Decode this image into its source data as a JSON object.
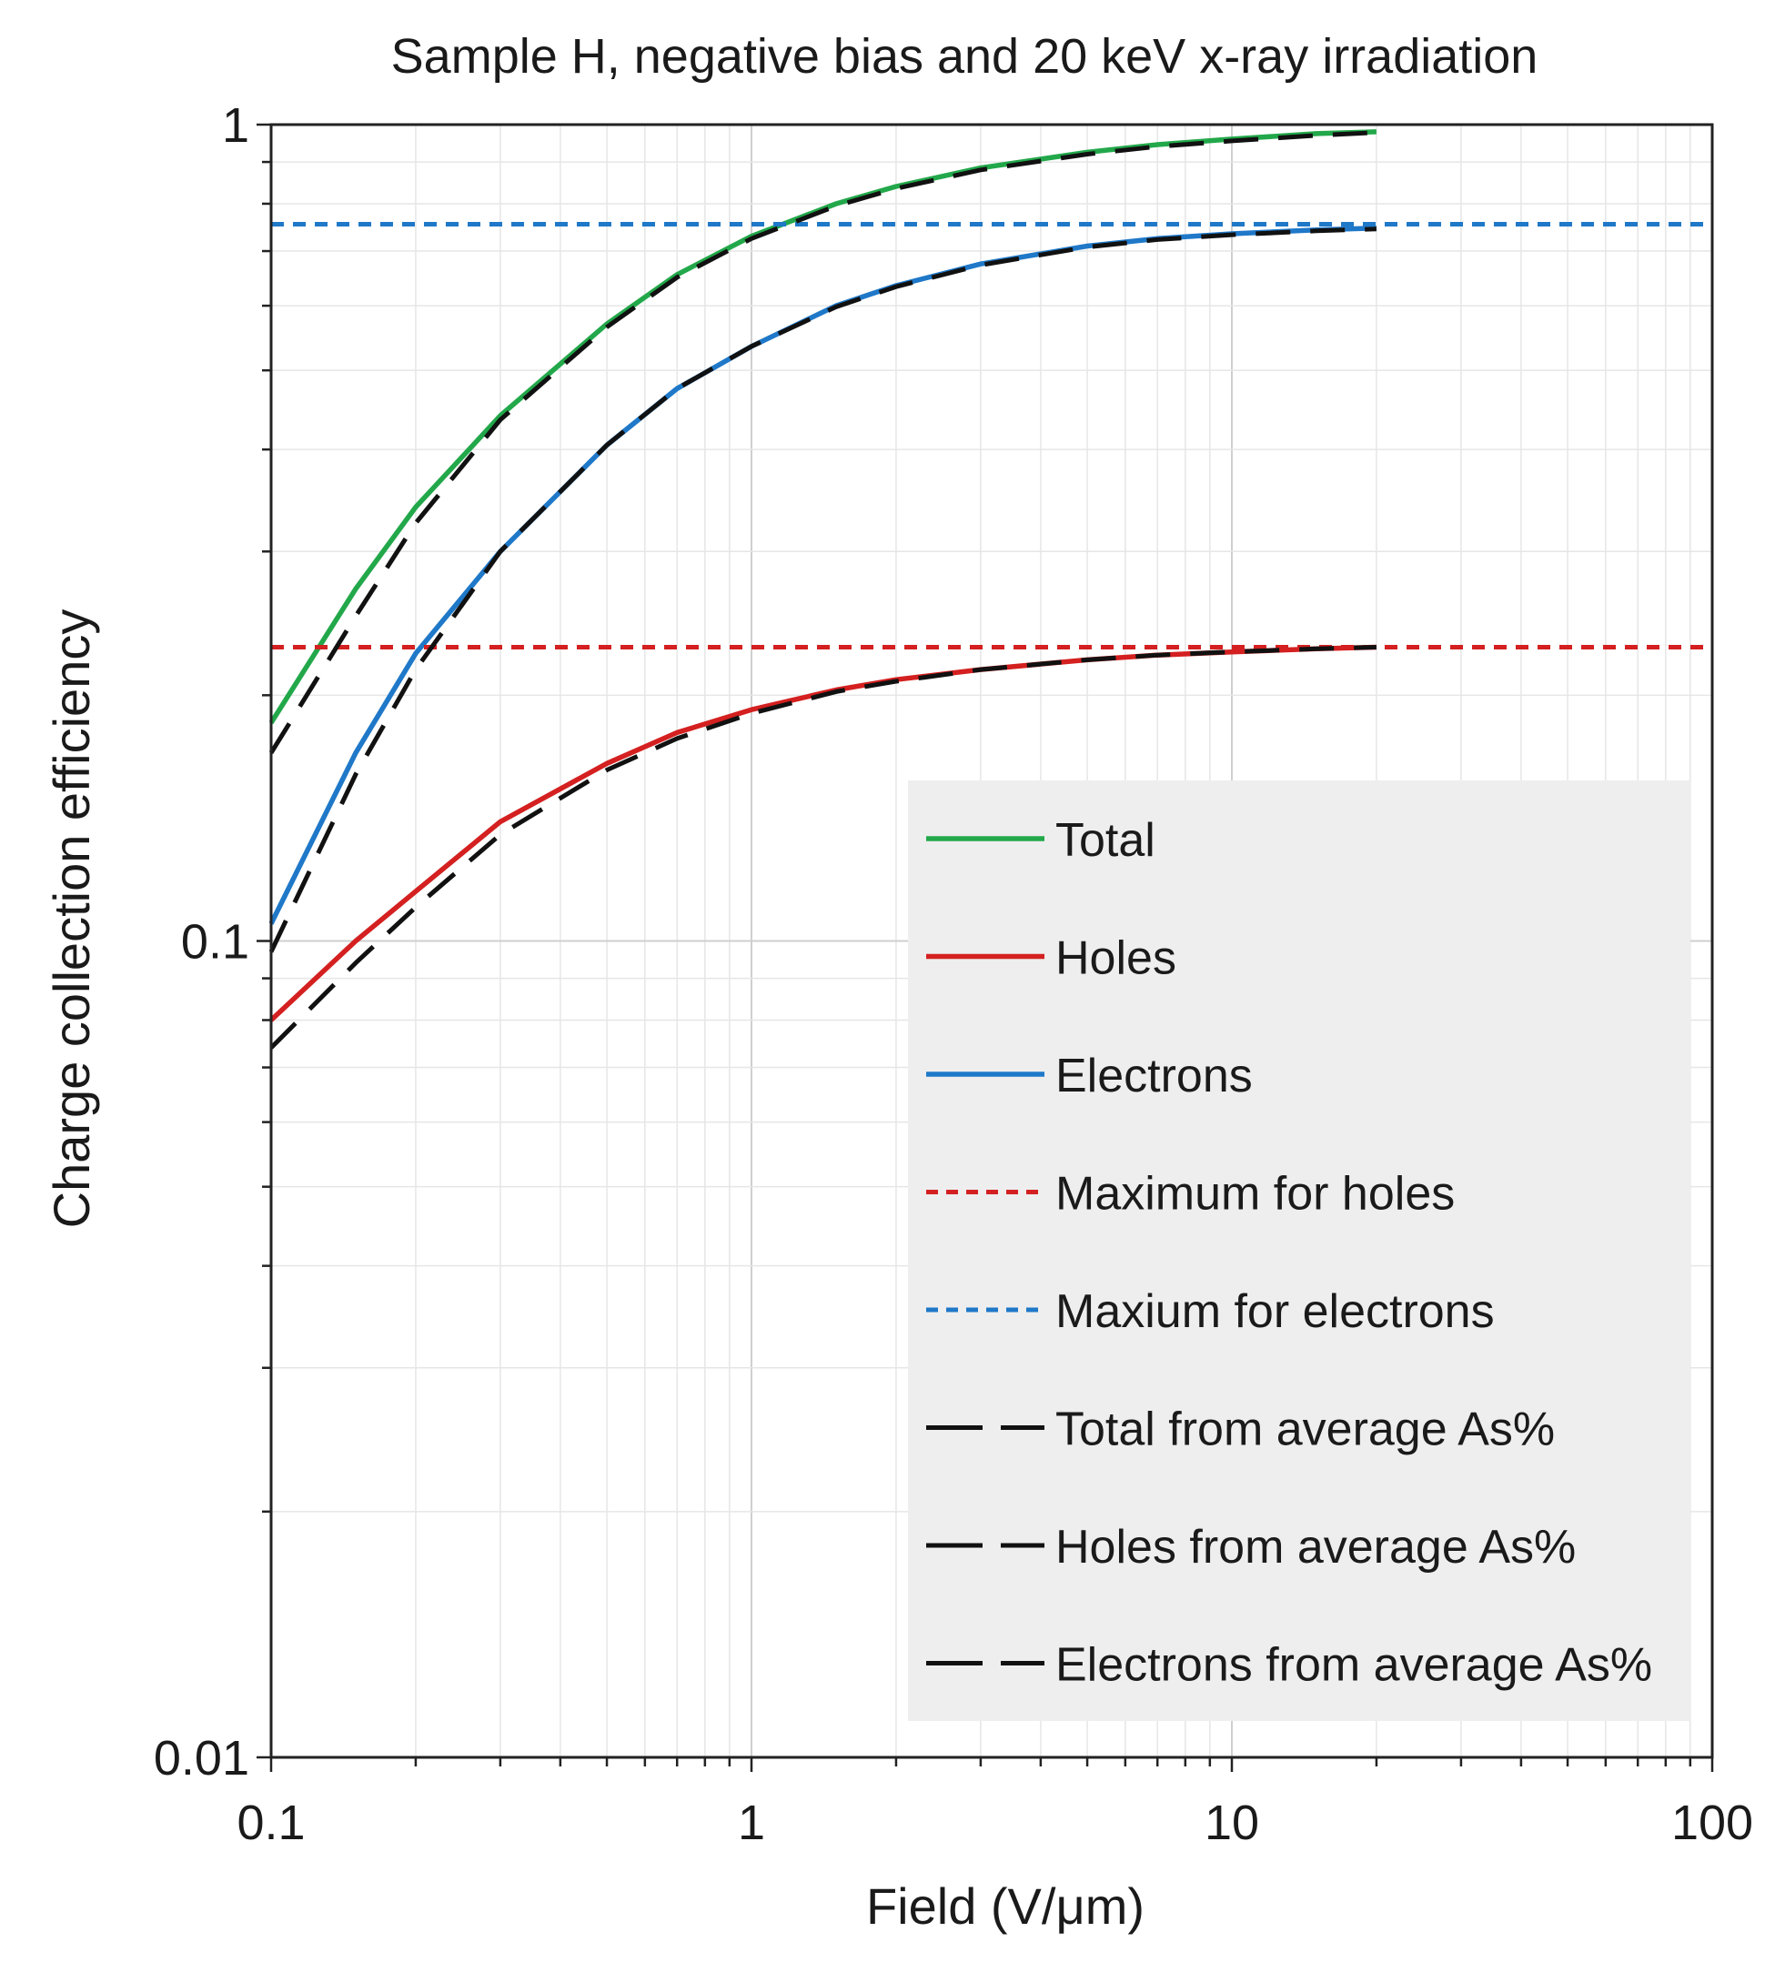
{
  "chart_data": {
    "type": "line",
    "title": "Sample H, negative bias and 20 keV x-ray irradiation",
    "xlabel": "Field (V/μm)",
    "ylabel": "Charge collection efficiency",
    "xscale": "log",
    "yscale": "log",
    "xlim": [
      0.1,
      100
    ],
    "ylim": [
      0.01,
      1
    ],
    "xticks": [
      0.1,
      1,
      10,
      100
    ],
    "xtick_labels": [
      "0.1",
      "1",
      "10",
      "100"
    ],
    "yticks": [
      0.01,
      0.1,
      1
    ],
    "ytick_labels": [
      "0.01",
      "0.1",
      "1"
    ],
    "grid": true,
    "legend_position": "bottom-right",
    "x": [
      0.1,
      0.15,
      0.2,
      0.3,
      0.5,
      0.7,
      1,
      1.5,
      2,
      3,
      5,
      7,
      10,
      15,
      20
    ],
    "series": [
      {
        "name": "Total",
        "style": "solid",
        "color": "#22a84a",
        "values": [
          0.185,
          0.27,
          0.34,
          0.44,
          0.57,
          0.655,
          0.73,
          0.8,
          0.84,
          0.885,
          0.925,
          0.945,
          0.96,
          0.975,
          0.98
        ]
      },
      {
        "name": "Holes",
        "style": "solid",
        "color": "#d42020",
        "values": [
          0.08,
          0.1,
          0.115,
          0.14,
          0.165,
          0.18,
          0.192,
          0.203,
          0.209,
          0.215,
          0.221,
          0.224,
          0.226,
          0.228,
          0.229
        ]
      },
      {
        "name": "Electrons",
        "style": "solid",
        "color": "#1f78c8",
        "values": [
          0.105,
          0.17,
          0.225,
          0.3,
          0.405,
          0.475,
          0.535,
          0.6,
          0.635,
          0.675,
          0.71,
          0.725,
          0.735,
          0.743,
          0.747
        ]
      },
      {
        "name": "Maximum for holes",
        "style": "dotted",
        "color": "#d42020",
        "values": [
          0.229,
          0.229,
          0.229,
          0.229,
          0.229,
          0.229,
          0.229,
          0.229,
          0.229,
          0.229,
          0.229,
          0.229,
          0.229,
          0.229,
          0.229
        ]
      },
      {
        "name": "Maxium for electrons",
        "style": "dotted",
        "color": "#1f78c8",
        "values": [
          0.755,
          0.755,
          0.755,
          0.755,
          0.755,
          0.755,
          0.755,
          0.755,
          0.755,
          0.755,
          0.755,
          0.755,
          0.755,
          0.755,
          0.755
        ]
      },
      {
        "name": "Total from average As%",
        "style": "dashed",
        "color": "#111111",
        "values": [
          0.17,
          0.25,
          0.325,
          0.435,
          0.565,
          0.65,
          0.725,
          0.795,
          0.835,
          0.88,
          0.92,
          0.94,
          0.955,
          0.97,
          0.978
        ]
      },
      {
        "name": "Holes from average As%",
        "style": "dashed",
        "color": "#111111",
        "values": [
          0.074,
          0.094,
          0.11,
          0.135,
          0.162,
          0.177,
          0.19,
          0.202,
          0.208,
          0.215,
          0.221,
          0.224,
          0.226,
          0.228,
          0.229
        ]
      },
      {
        "name": "Electrons from average As%",
        "style": "dashed",
        "color": "#111111",
        "values": [
          0.097,
          0.16,
          0.215,
          0.3,
          0.405,
          0.475,
          0.535,
          0.598,
          0.633,
          0.673,
          0.708,
          0.723,
          0.733,
          0.741,
          0.745
        ]
      }
    ]
  }
}
